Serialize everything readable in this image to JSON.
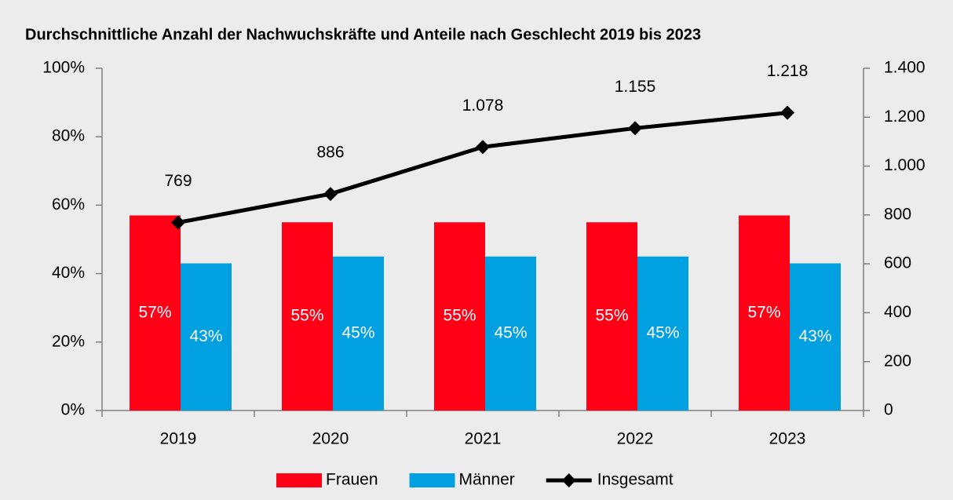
{
  "chart_data": {
    "type": "bar_line",
    "title": "Durchschnittliche Anzahl der Nachwuchskräfte und Anteile nach Geschlecht 2019 bis 2023",
    "categories": [
      "2019",
      "2020",
      "2021",
      "2022",
      "2023"
    ],
    "series": [
      {
        "name": "Frauen",
        "type": "bar",
        "color": "#ff0016",
        "values": [
          57,
          55,
          55,
          55,
          57
        ],
        "value_labels": [
          "57%",
          "55%",
          "55%",
          "55%",
          "57%"
        ]
      },
      {
        "name": "Männer",
        "type": "bar",
        "color": "#00a0e1",
        "values": [
          43,
          45,
          45,
          45,
          43
        ],
        "value_labels": [
          "43%",
          "45%",
          "45%",
          "45%",
          "43%"
        ]
      },
      {
        "name": "Insgesamt",
        "type": "line",
        "axis": "y2",
        "color": "#000000",
        "values": [
          769,
          886,
          1078,
          1155,
          1218
        ],
        "value_labels": [
          "769",
          "886",
          "1.078",
          "1.155",
          "1.218"
        ]
      }
    ],
    "ylim": [
      0,
      100
    ],
    "yticks": [
      {
        "value": 0,
        "label": "0%"
      },
      {
        "value": 20,
        "label": "20%"
      },
      {
        "value": 40,
        "label": "40%"
      },
      {
        "value": 60,
        "label": "60%"
      },
      {
        "value": 80,
        "label": "80%"
      },
      {
        "value": 100,
        "label": "100%"
      }
    ],
    "y2lim": [
      0,
      1400
    ],
    "y2ticks": [
      0,
      200,
      400,
      600,
      800,
      {
        "value": 1000,
        "label": "1.000"
      },
      {
        "value": 1200,
        "label": "1.200"
      },
      {
        "value": 1400,
        "label": "1.400"
      }
    ],
    "legend": "bottom"
  }
}
